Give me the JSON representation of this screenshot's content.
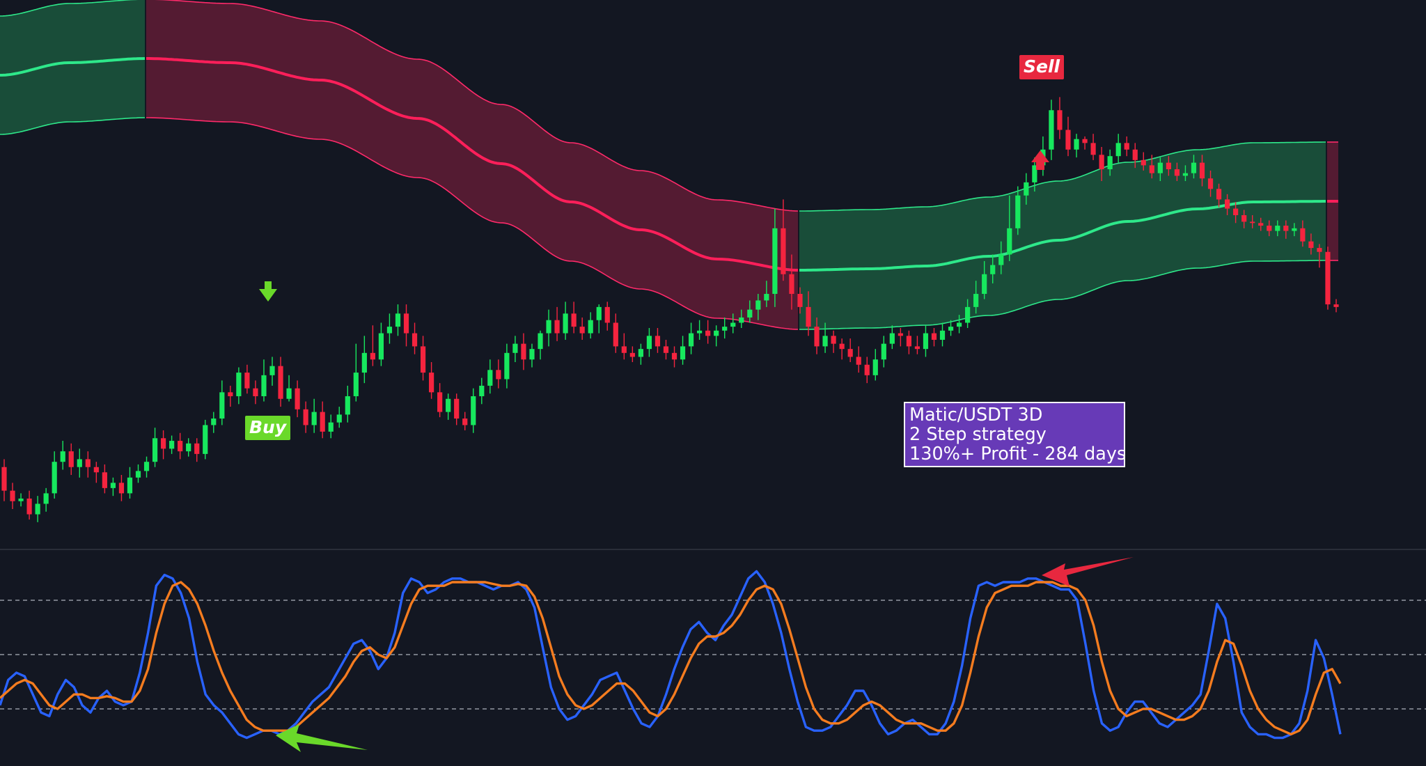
{
  "chart_data": [
    {
      "type": "candlestick",
      "title": "",
      "description_source": "Matic/USDT 3D price panel with adaptive trend band (no axes printed)",
      "band_segments": [
        {
          "trend": "bullish",
          "color": "#1f7a4c"
        },
        {
          "trend": "bearish",
          "color": "#8a1f3f"
        },
        {
          "trend": "bullish",
          "color": "#1f7a4c"
        },
        {
          "trend": "bearish",
          "color": "#8a1f3f"
        }
      ],
      "colors": {
        "up": "#17e85e",
        "down": "#f5243f",
        "band_mid_bull": "#2ee88a",
        "band_mid_bear": "#ff1f5a"
      },
      "candles": [
        [
          58,
          40,
          64,
          32
        ],
        [
          40,
          32,
          46,
          26
        ],
        [
          32,
          34,
          38,
          28
        ],
        [
          34,
          22,
          40,
          18
        ],
        [
          22,
          30,
          36,
          16
        ],
        [
          30,
          38,
          42,
          24
        ],
        [
          38,
          62,
          70,
          34
        ],
        [
          62,
          70,
          78,
          56
        ],
        [
          70,
          58,
          76,
          52
        ],
        [
          58,
          64,
          72,
          50
        ],
        [
          64,
          58,
          70,
          50
        ],
        [
          58,
          54,
          62,
          46
        ],
        [
          54,
          42,
          60,
          38
        ],
        [
          42,
          46,
          50,
          36
        ],
        [
          46,
          38,
          52,
          32
        ],
        [
          38,
          50,
          58,
          34
        ],
        [
          50,
          55,
          60,
          46
        ],
        [
          55,
          62,
          66,
          50
        ],
        [
          62,
          80,
          88,
          58
        ],
        [
          80,
          72,
          86,
          64
        ],
        [
          72,
          78,
          82,
          68
        ],
        [
          78,
          70,
          84,
          64
        ],
        [
          70,
          76,
          80,
          66
        ],
        [
          76,
          68,
          80,
          62
        ],
        [
          68,
          90,
          94,
          64
        ],
        [
          90,
          95,
          100,
          84
        ],
        [
          95,
          115,
          124,
          90
        ],
        [
          115,
          112,
          120,
          104
        ],
        [
          112,
          130,
          134,
          106
        ],
        [
          130,
          118,
          136,
          114
        ],
        [
          118,
          112,
          124,
          106
        ],
        [
          112,
          128,
          140,
          108
        ],
        [
          128,
          135,
          142,
          120
        ],
        [
          135,
          110,
          142,
          104
        ],
        [
          110,
          118,
          128,
          108
        ],
        [
          118,
          102,
          124,
          96
        ],
        [
          102,
          90,
          108,
          84
        ],
        [
          90,
          100,
          110,
          84
        ],
        [
          100,
          85,
          108,
          80
        ],
        [
          85,
          92,
          98,
          80
        ],
        [
          92,
          98,
          104,
          88
        ],
        [
          98,
          112,
          120,
          92
        ],
        [
          112,
          130,
          152,
          108
        ],
        [
          130,
          145,
          158,
          122
        ],
        [
          145,
          140,
          166,
          135
        ],
        [
          140,
          160,
          168,
          135
        ],
        [
          160,
          165,
          175,
          152
        ],
        [
          165,
          175,
          182,
          158
        ],
        [
          175,
          160,
          182,
          150
        ],
        [
          160,
          150,
          168,
          144
        ],
        [
          150,
          130,
          158,
          124
        ],
        [
          130,
          115,
          138,
          110
        ],
        [
          115,
          100,
          122,
          96
        ],
        [
          100,
          110,
          114,
          94
        ],
        [
          110,
          95,
          114,
          90
        ],
        [
          95,
          90,
          100,
          86
        ],
        [
          90,
          112,
          118,
          84
        ],
        [
          112,
          120,
          126,
          106
        ],
        [
          120,
          132,
          140,
          114
        ],
        [
          132,
          125,
          140,
          118
        ],
        [
          125,
          145,
          152,
          118
        ],
        [
          145,
          152,
          158,
          138
        ],
        [
          152,
          140,
          160,
          132
        ],
        [
          140,
          148,
          152,
          134
        ],
        [
          148,
          160,
          162,
          140
        ],
        [
          160,
          170,
          178,
          150
        ],
        [
          170,
          160,
          180,
          154
        ],
        [
          160,
          175,
          184,
          155
        ],
        [
          175,
          165,
          184,
          160
        ],
        [
          165,
          160,
          172,
          155
        ],
        [
          160,
          170,
          176,
          156
        ],
        [
          170,
          180,
          182,
          160
        ],
        [
          180,
          168,
          184,
          162
        ],
        [
          168,
          150,
          175,
          145
        ],
        [
          150,
          145,
          160,
          140
        ],
        [
          145,
          142,
          150,
          138
        ],
        [
          142,
          148,
          152,
          136
        ],
        [
          148,
          158,
          164,
          142
        ],
        [
          158,
          150,
          164,
          145
        ],
        [
          150,
          145,
          155,
          140
        ],
        [
          145,
          140,
          150,
          134
        ],
        [
          140,
          150,
          158,
          136
        ],
        [
          150,
          160,
          168,
          144
        ],
        [
          160,
          162,
          170,
          155
        ],
        [
          162,
          158,
          170,
          152
        ],
        [
          158,
          162,
          166,
          150
        ],
        [
          162,
          165,
          172,
          156
        ],
        [
          165,
          168,
          175,
          160
        ],
        [
          168,
          172,
          178,
          164
        ],
        [
          172,
          178,
          185,
          168
        ],
        [
          178,
          185,
          190,
          170
        ],
        [
          185,
          190,
          200,
          180
        ],
        [
          190,
          240,
          255,
          180
        ],
        [
          240,
          205,
          262,
          200
        ],
        [
          205,
          190,
          220,
          178
        ],
        [
          190,
          180,
          195,
          175
        ],
        [
          180,
          165,
          192,
          158
        ],
        [
          165,
          150,
          172,
          144
        ],
        [
          150,
          158,
          168,
          145
        ],
        [
          158,
          152,
          162,
          145
        ],
        [
          152,
          148,
          156,
          140
        ],
        [
          148,
          142,
          156,
          138
        ],
        [
          142,
          136,
          150,
          130
        ],
        [
          136,
          128,
          142,
          122
        ],
        [
          128,
          140,
          148,
          124
        ],
        [
          140,
          152,
          158,
          134
        ],
        [
          152,
          160,
          166,
          148
        ],
        [
          160,
          158,
          164,
          150
        ],
        [
          158,
          150,
          162,
          144
        ],
        [
          150,
          148,
          158,
          144
        ],
        [
          148,
          160,
          166,
          142
        ],
        [
          160,
          155,
          164,
          150
        ],
        [
          155,
          162,
          168,
          150
        ],
        [
          162,
          165,
          170,
          158
        ],
        [
          165,
          168,
          174,
          160
        ],
        [
          168,
          180,
          186,
          164
        ],
        [
          180,
          190,
          200,
          175
        ],
        [
          190,
          205,
          215,
          186
        ],
        [
          205,
          212,
          220,
          198
        ],
        [
          212,
          220,
          230,
          205
        ],
        [
          220,
          240,
          265,
          215
        ],
        [
          240,
          265,
          272,
          235
        ],
        [
          265,
          275,
          282,
          258
        ],
        [
          275,
          288,
          294,
          268
        ],
        [
          288,
          300,
          310,
          280
        ],
        [
          300,
          330,
          338,
          292
        ],
        [
          330,
          315,
          340,
          308
        ],
        [
          315,
          300,
          325,
          295
        ],
        [
          300,
          308,
          312,
          294
        ],
        [
          308,
          305,
          310,
          300
        ],
        [
          305,
          296,
          312,
          292
        ],
        [
          296,
          285,
          302,
          276
        ],
        [
          285,
          295,
          300,
          280
        ],
        [
          295,
          305,
          312,
          290
        ],
        [
          305,
          300,
          310,
          295
        ],
        [
          300,
          292,
          305,
          286
        ],
        [
          292,
          288,
          298,
          284
        ],
        [
          288,
          282,
          296,
          278
        ],
        [
          282,
          290,
          294,
          276
        ],
        [
          290,
          285,
          295,
          280
        ],
        [
          285,
          280,
          290,
          276
        ],
        [
          280,
          282,
          288,
          276
        ],
        [
          282,
          290,
          296,
          278
        ],
        [
          290,
          278,
          296,
          272
        ],
        [
          278,
          270,
          284,
          264
        ],
        [
          270,
          262,
          274,
          256
        ],
        [
          262,
          255,
          266,
          250
        ],
        [
          255,
          250,
          260,
          244
        ],
        [
          250,
          245,
          254,
          240
        ],
        [
          245,
          244,
          250,
          240
        ],
        [
          244,
          242,
          248,
          238
        ],
        [
          242,
          238,
          246,
          234
        ],
        [
          238,
          242,
          246,
          234
        ],
        [
          242,
          238,
          246,
          232
        ],
        [
          238,
          240,
          244,
          234
        ],
        [
          240,
          230,
          246,
          226
        ],
        [
          230,
          225,
          236,
          220
        ],
        [
          225,
          222,
          228,
          210
        ],
        [
          222,
          182,
          226,
          178
        ],
        [
          182,
          180,
          186,
          176
        ]
      ]
    },
    {
      "type": "line",
      "title": "",
      "description_source": "Stochastic oscillator panel, two lines with three dashed reference levels",
      "reference_levels": [
        80,
        50,
        20
      ],
      "ylim": [
        0,
        100
      ],
      "series": [
        {
          "color": "#2962ff",
          "values": [
            22,
            36,
            40,
            38,
            28,
            18,
            16,
            28,
            36,
            32,
            22,
            18,
            26,
            30,
            24,
            22,
            24,
            40,
            62,
            88,
            94,
            92,
            84,
            70,
            46,
            28,
            22,
            18,
            12,
            6,
            4,
            6,
            8,
            8,
            6,
            8,
            12,
            18,
            24,
            28,
            32,
            40,
            48,
            56,
            58,
            52,
            42,
            48,
            62,
            84,
            92,
            90,
            84,
            86,
            90,
            92,
            92,
            90,
            90,
            88,
            86,
            88,
            88,
            90,
            86,
            76,
            54,
            32,
            20,
            14,
            16,
            22,
            28,
            36,
            38,
            40,
            30,
            20,
            12,
            10,
            16,
            28,
            42,
            54,
            64,
            68,
            62,
            58,
            66,
            72,
            82,
            92,
            96,
            90,
            78,
            62,
            42,
            24,
            10,
            8,
            8,
            10,
            16,
            22,
            30,
            30,
            22,
            12,
            6,
            8,
            12,
            14,
            10,
            6,
            6,
            12,
            24,
            44,
            70,
            88,
            90,
            88,
            90,
            90,
            90,
            92,
            92,
            90,
            88,
            86,
            86,
            80,
            56,
            30,
            12,
            8,
            10,
            18,
            24,
            24,
            18,
            12,
            10,
            14,
            18,
            22,
            28,
            52,
            78,
            70,
            46,
            18,
            10,
            6,
            6,
            4,
            4,
            6,
            12,
            30,
            58,
            48,
            28,
            6
          ]
        },
        {
          "color": "#f57c1f",
          "values": [
            26,
            30,
            34,
            36,
            34,
            28,
            22,
            20,
            24,
            28,
            28,
            26,
            26,
            27,
            26,
            24,
            24,
            30,
            42,
            62,
            78,
            88,
            90,
            86,
            78,
            66,
            52,
            40,
            30,
            22,
            14,
            10,
            8,
            8,
            8,
            8,
            10,
            14,
            18,
            22,
            26,
            32,
            38,
            46,
            52,
            54,
            50,
            48,
            54,
            66,
            78,
            86,
            88,
            88,
            88,
            90,
            90,
            90,
            90,
            90,
            89,
            88,
            88,
            89,
            88,
            82,
            70,
            54,
            38,
            28,
            22,
            20,
            22,
            26,
            30,
            34,
            34,
            30,
            24,
            18,
            16,
            20,
            28,
            38,
            48,
            56,
            60,
            60,
            62,
            66,
            72,
            80,
            86,
            88,
            86,
            78,
            64,
            48,
            32,
            20,
            14,
            12,
            12,
            14,
            18,
            22,
            24,
            22,
            18,
            14,
            12,
            12,
            12,
            10,
            8,
            8,
            12,
            22,
            40,
            60,
            76,
            84,
            86,
            88,
            88,
            88,
            90,
            90,
            90,
            88,
            88,
            86,
            80,
            66,
            46,
            30,
            20,
            16,
            18,
            20,
            20,
            18,
            16,
            14,
            14,
            16,
            20,
            30,
            46,
            58,
            56,
            44,
            30,
            20,
            14,
            10,
            8,
            6,
            8,
            14,
            28,
            40,
            42,
            34
          ]
        }
      ]
    }
  ],
  "signals": {
    "buy_label": "Buy",
    "sell_label": "Sell"
  },
  "info": {
    "line1": "Matic/USDT 3D",
    "line2": "2 Step strategy",
    "line3": "130%+ Profit - 284 days"
  },
  "colors": {
    "background": "#131722",
    "info_bg": "#673ab7",
    "buy": "#6ad92a",
    "sell": "#e8283f"
  }
}
